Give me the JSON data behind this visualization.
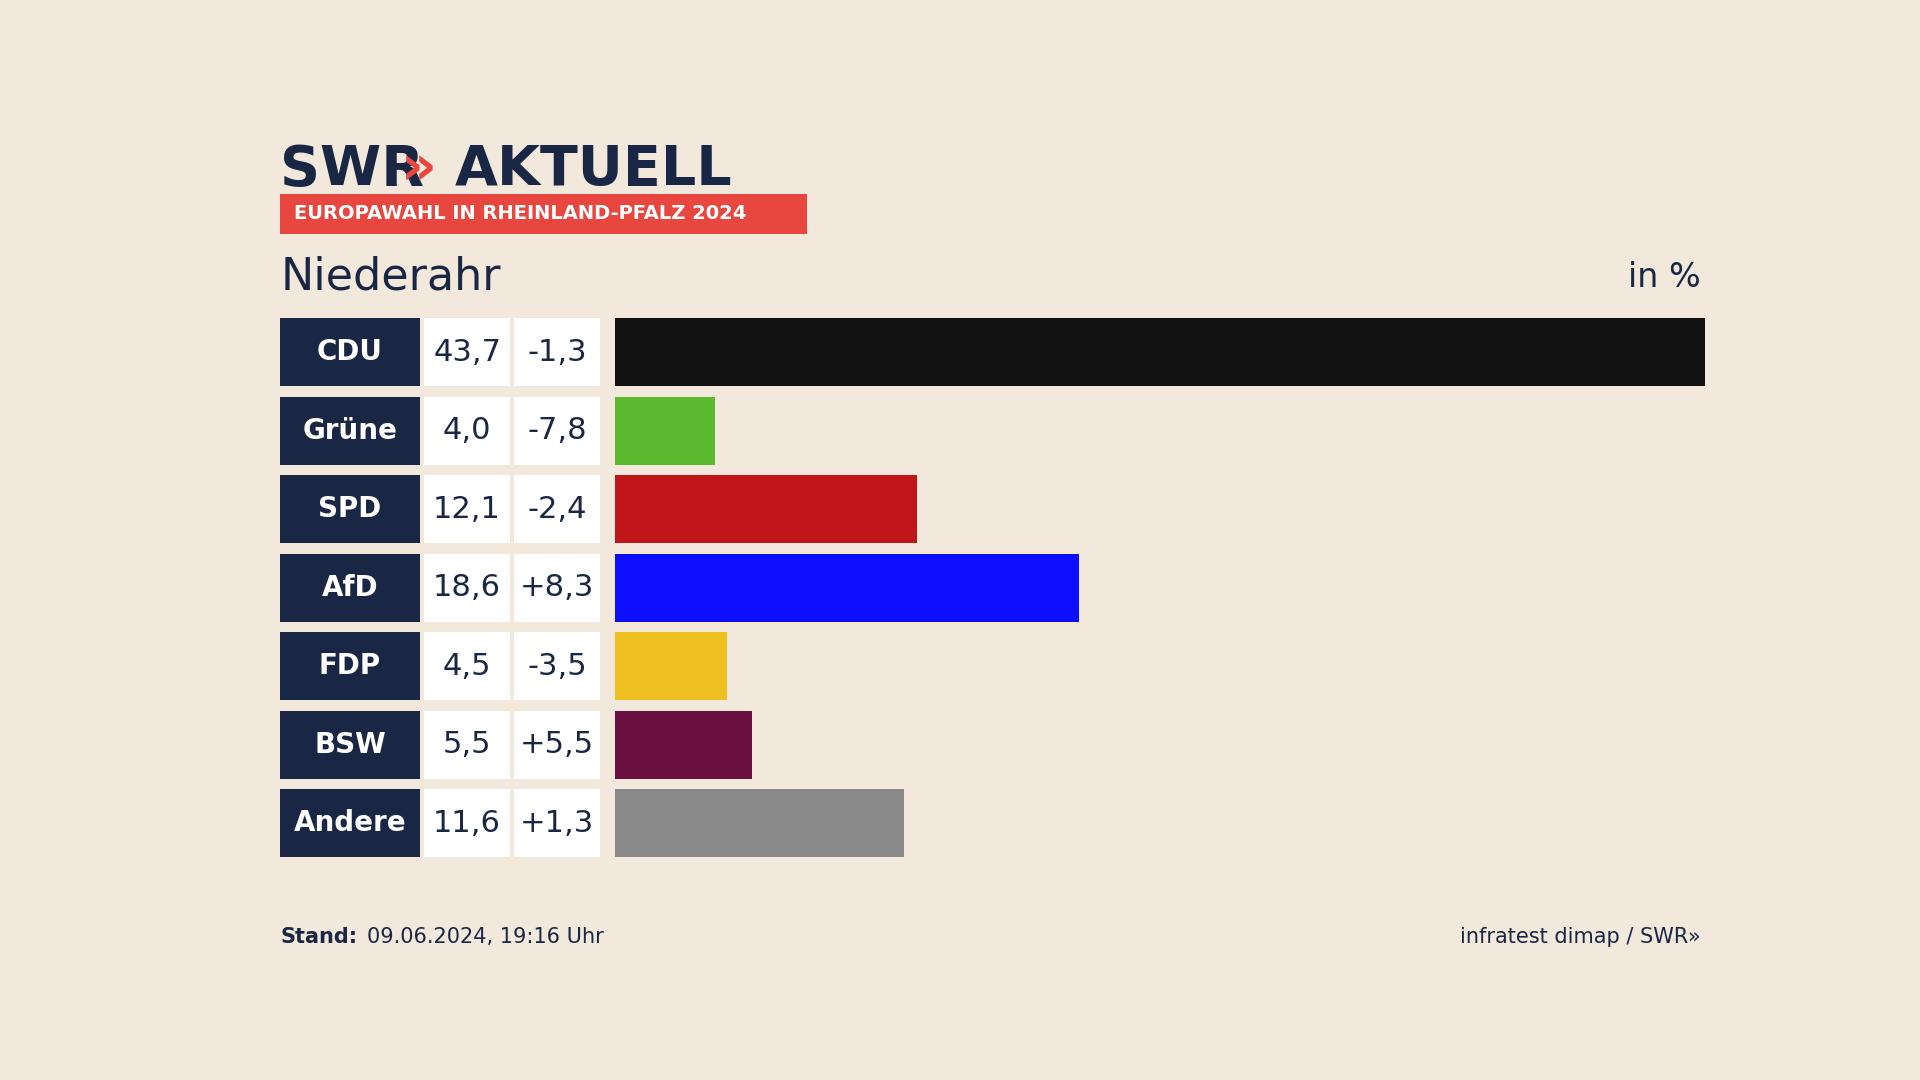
{
  "title": "Niederahr",
  "subtitle": "EUROPAWAHL IN RHEINLAND-PFALZ 2024",
  "in_percent_label": "in %",
  "stand_label": "Stand:",
  "stand_date": "09.06.2024, 19:16 Uhr",
  "infratest_text": "infratest dimap / SWR»",
  "background_color": "#f2e8dc",
  "parties": [
    "CDU",
    "Grüne",
    "SPD",
    "AfD",
    "FDP",
    "BSW",
    "Andere"
  ],
  "values": [
    43.7,
    4.0,
    12.1,
    18.6,
    4.5,
    5.5,
    11.6
  ],
  "changes": [
    "-1,3",
    "-7,8",
    "-2,4",
    "+8,3",
    "-3,5",
    "+5,5",
    "+1,3"
  ],
  "values_str": [
    "43,7",
    "4,0",
    "12,1",
    "18,6",
    "4,5",
    "5,5",
    "11,6"
  ],
  "bar_colors": [
    "#111111",
    "#5cb82e",
    "#c0161a",
    "#0f0fff",
    "#f0c020",
    "#6b1040",
    "#8a8a8a"
  ],
  "label_bg_color": "#1a2744",
  "label_text_color": "#ffffff",
  "value_bg_color": "#ffffff",
  "value_text_color": "#1a2744",
  "subtitle_bg_color": "#e8473f",
  "subtitle_text_color": "#ffffff",
  "swr_color": "#1a2744",
  "swr_chevron_color": "#e8473f",
  "max_value": 43.7,
  "fig_w": 19.2,
  "fig_h": 10.8
}
